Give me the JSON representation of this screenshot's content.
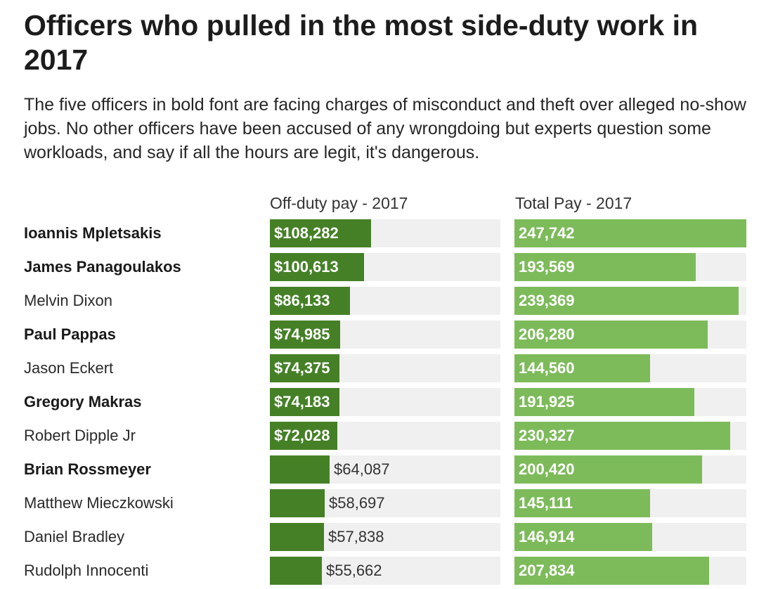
{
  "chart_data": {
    "type": "bar",
    "title": "Officers who pulled in the most side-duty work in 2017",
    "subtitle": "The five officers in bold font are facing charges of misconduct and theft over alleged no-show jobs. No other officers have been accused of any wrongdoing but experts question some workloads, and say if all the hours are legit, it's dangerous.",
    "categories": [
      "Ioannis Mpletsakis",
      "James Panagoulakos",
      "Melvin Dixon",
      "Paul Pappas",
      "Jason Eckert",
      "Gregory Makras",
      "Robert Dipple Jr",
      "Brian Rossmeyer",
      "Matthew Mieczkowski",
      "Daniel Bradley",
      "Rudolph Innocenti"
    ],
    "bold": [
      true,
      true,
      false,
      true,
      false,
      true,
      false,
      true,
      false,
      false,
      false
    ],
    "series": [
      {
        "name": "Off-duty pay - 2017",
        "values": [
          108282,
          100613,
          86133,
          74985,
          74375,
          74183,
          72028,
          64087,
          58697,
          57838,
          55662
        ],
        "labels": [
          "$108,282",
          "$100,613",
          "$86,133",
          "$74,985",
          "$74,375",
          "$74,183",
          "$72,028",
          "$64,087",
          "$58,697",
          "$57,838",
          "$55,662"
        ],
        "max": 247000,
        "color": "#458026"
      },
      {
        "name": "Total Pay - 2017",
        "values": [
          247742,
          193569,
          239369,
          206280,
          144560,
          191925,
          230327,
          200420,
          145111,
          146914,
          207834
        ],
        "labels": [
          "247,742",
          "193,569",
          "239,369",
          "206,280",
          "144,560",
          "191,925",
          "230,327",
          "200,420",
          "145,111",
          "146,914",
          "207,834"
        ],
        "max": 247742,
        "color": "#7dbb5a"
      }
    ],
    "label_inside_threshold": 70000
  }
}
